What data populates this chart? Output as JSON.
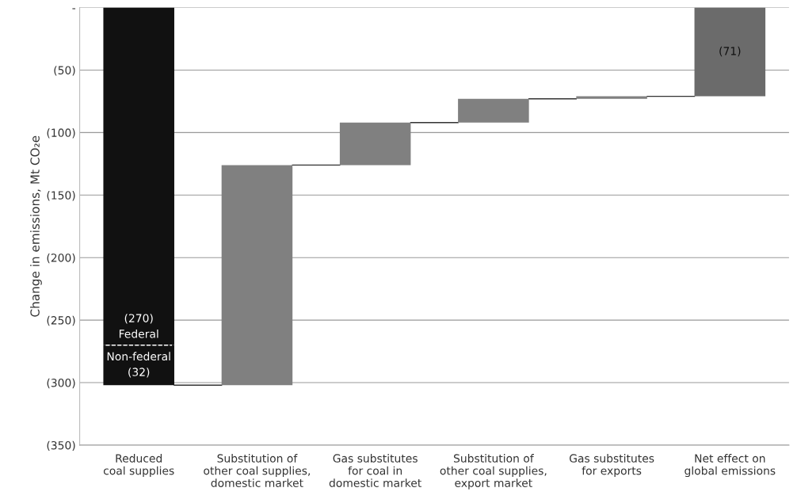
{
  "chart_data": {
    "type": "bar",
    "ylabel": "Change in emissions, Mt CO₂e",
    "categories": [
      "Reduced\ncoal supplies",
      "Substitution of\nother coal supplies,\ndomestic market",
      "Gas substitutes\nfor coal in\ndomestic market",
      "Substitution of\nother coal supplies,\nexport market",
      "Gas substitutes\nfor exports",
      "Net effect on\nglobal emissions"
    ],
    "series": [
      {
        "name": "Federal",
        "color": "#111111",
        "values": [
          -270,
          null,
          null,
          null,
          null,
          null
        ],
        "base": [
          0,
          null,
          null,
          null,
          null,
          null
        ],
        "value_labels": [
          "(270)",
          null,
          null,
          null,
          null,
          null
        ]
      },
      {
        "name": "Non-federal",
        "color": "#111111",
        "line_style": "dashed",
        "values": [
          -32,
          null,
          null,
          null,
          null,
          null
        ],
        "base": [
          -270,
          null,
          null,
          null,
          null,
          null
        ],
        "value_labels": [
          "(32)",
          null,
          null,
          null,
          null,
          null
        ]
      },
      {
        "color": "#808080",
        "values": [
          null,
          176,
          34,
          19,
          2,
          null
        ],
        "base": [
          null,
          -302,
          -126,
          -92,
          -73,
          null
        ]
      },
      {
        "color": "#6b6b6b",
        "values": [
          null,
          null,
          null,
          null,
          null,
          -71
        ],
        "base": [
          null,
          null,
          null,
          null,
          null,
          0
        ],
        "value_labels": [
          null,
          null,
          null,
          null,
          null,
          "(71)"
        ]
      }
    ],
    "ylim": [
      -350,
      0
    ],
    "yticks": [
      {
        "value": 0,
        "label": "-"
      },
      {
        "value": -50,
        "label": "(50)"
      },
      {
        "value": -100,
        "label": "(100)"
      },
      {
        "value": -150,
        "label": "(150)"
      },
      {
        "value": -200,
        "label": "(200)"
      },
      {
        "value": -250,
        "label": "(250)"
      },
      {
        "value": -300,
        "label": "(300)"
      },
      {
        "value": -350,
        "label": "(350)"
      }
    ],
    "grid": "y"
  }
}
